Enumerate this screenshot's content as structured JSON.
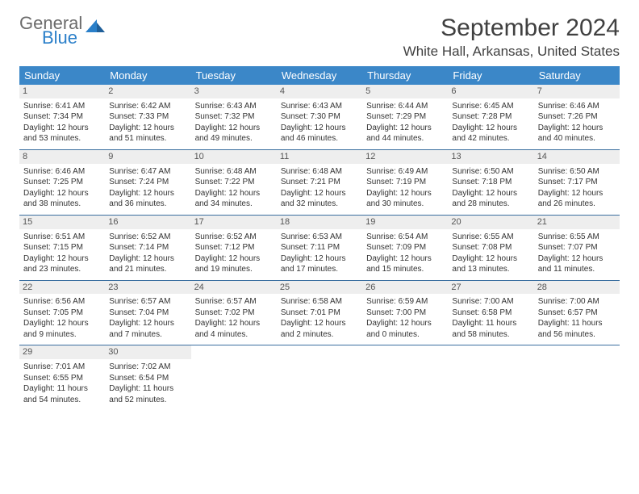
{
  "brand": {
    "line1": "General",
    "line2": "Blue",
    "mark_color": "#2a7fc9",
    "text_gray": "#6b6b6b"
  },
  "title": "September 2024",
  "location": "White Hall, Arkansas, United States",
  "header_bg": "#3b87c8",
  "row_border": "#3b6fa0",
  "daynum_bg": "#eeeeee",
  "weekdays": [
    "Sunday",
    "Monday",
    "Tuesday",
    "Wednesday",
    "Thursday",
    "Friday",
    "Saturday"
  ],
  "weeks": [
    [
      {
        "n": "1",
        "sr": "6:41 AM",
        "ss": "7:34 PM",
        "dl": "12 hours and 53 minutes."
      },
      {
        "n": "2",
        "sr": "6:42 AM",
        "ss": "7:33 PM",
        "dl": "12 hours and 51 minutes."
      },
      {
        "n": "3",
        "sr": "6:43 AM",
        "ss": "7:32 PM",
        "dl": "12 hours and 49 minutes."
      },
      {
        "n": "4",
        "sr": "6:43 AM",
        "ss": "7:30 PM",
        "dl": "12 hours and 46 minutes."
      },
      {
        "n": "5",
        "sr": "6:44 AM",
        "ss": "7:29 PM",
        "dl": "12 hours and 44 minutes."
      },
      {
        "n": "6",
        "sr": "6:45 AM",
        "ss": "7:28 PM",
        "dl": "12 hours and 42 minutes."
      },
      {
        "n": "7",
        "sr": "6:46 AM",
        "ss": "7:26 PM",
        "dl": "12 hours and 40 minutes."
      }
    ],
    [
      {
        "n": "8",
        "sr": "6:46 AM",
        "ss": "7:25 PM",
        "dl": "12 hours and 38 minutes."
      },
      {
        "n": "9",
        "sr": "6:47 AM",
        "ss": "7:24 PM",
        "dl": "12 hours and 36 minutes."
      },
      {
        "n": "10",
        "sr": "6:48 AM",
        "ss": "7:22 PM",
        "dl": "12 hours and 34 minutes."
      },
      {
        "n": "11",
        "sr": "6:48 AM",
        "ss": "7:21 PM",
        "dl": "12 hours and 32 minutes."
      },
      {
        "n": "12",
        "sr": "6:49 AM",
        "ss": "7:19 PM",
        "dl": "12 hours and 30 minutes."
      },
      {
        "n": "13",
        "sr": "6:50 AM",
        "ss": "7:18 PM",
        "dl": "12 hours and 28 minutes."
      },
      {
        "n": "14",
        "sr": "6:50 AM",
        "ss": "7:17 PM",
        "dl": "12 hours and 26 minutes."
      }
    ],
    [
      {
        "n": "15",
        "sr": "6:51 AM",
        "ss": "7:15 PM",
        "dl": "12 hours and 23 minutes."
      },
      {
        "n": "16",
        "sr": "6:52 AM",
        "ss": "7:14 PM",
        "dl": "12 hours and 21 minutes."
      },
      {
        "n": "17",
        "sr": "6:52 AM",
        "ss": "7:12 PM",
        "dl": "12 hours and 19 minutes."
      },
      {
        "n": "18",
        "sr": "6:53 AM",
        "ss": "7:11 PM",
        "dl": "12 hours and 17 minutes."
      },
      {
        "n": "19",
        "sr": "6:54 AM",
        "ss": "7:09 PM",
        "dl": "12 hours and 15 minutes."
      },
      {
        "n": "20",
        "sr": "6:55 AM",
        "ss": "7:08 PM",
        "dl": "12 hours and 13 minutes."
      },
      {
        "n": "21",
        "sr": "6:55 AM",
        "ss": "7:07 PM",
        "dl": "12 hours and 11 minutes."
      }
    ],
    [
      {
        "n": "22",
        "sr": "6:56 AM",
        "ss": "7:05 PM",
        "dl": "12 hours and 9 minutes."
      },
      {
        "n": "23",
        "sr": "6:57 AM",
        "ss": "7:04 PM",
        "dl": "12 hours and 7 minutes."
      },
      {
        "n": "24",
        "sr": "6:57 AM",
        "ss": "7:02 PM",
        "dl": "12 hours and 4 minutes."
      },
      {
        "n": "25",
        "sr": "6:58 AM",
        "ss": "7:01 PM",
        "dl": "12 hours and 2 minutes."
      },
      {
        "n": "26",
        "sr": "6:59 AM",
        "ss": "7:00 PM",
        "dl": "12 hours and 0 minutes."
      },
      {
        "n": "27",
        "sr": "7:00 AM",
        "ss": "6:58 PM",
        "dl": "11 hours and 58 minutes."
      },
      {
        "n": "28",
        "sr": "7:00 AM",
        "ss": "6:57 PM",
        "dl": "11 hours and 56 minutes."
      }
    ],
    [
      {
        "n": "29",
        "sr": "7:01 AM",
        "ss": "6:55 PM",
        "dl": "11 hours and 54 minutes."
      },
      {
        "n": "30",
        "sr": "7:02 AM",
        "ss": "6:54 PM",
        "dl": "11 hours and 52 minutes."
      },
      null,
      null,
      null,
      null,
      null
    ]
  ],
  "labels": {
    "sunrise": "Sunrise:",
    "sunset": "Sunset:",
    "daylight": "Daylight:"
  }
}
